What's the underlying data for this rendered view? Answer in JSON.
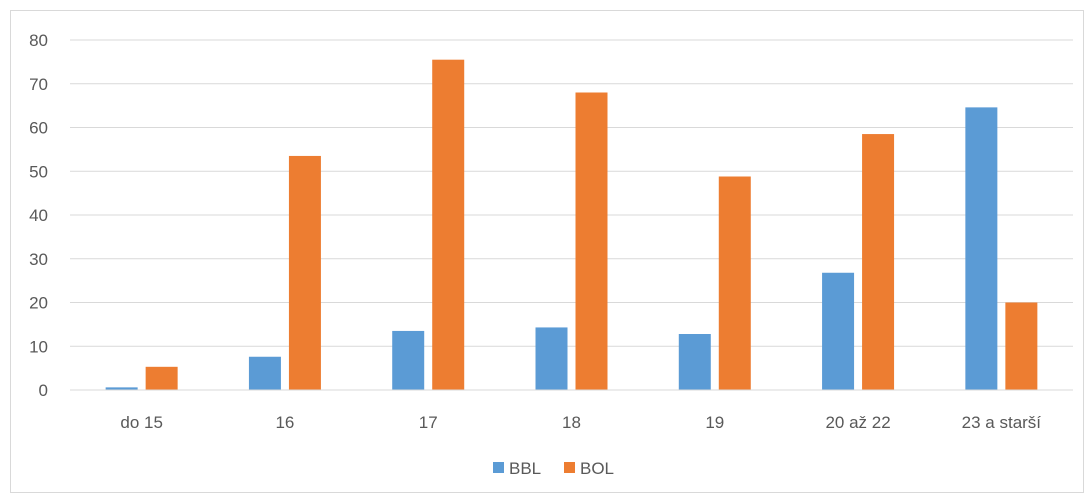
{
  "chart_data": {
    "type": "bar",
    "title": "",
    "xlabel": "",
    "ylabel": "",
    "categories": [
      "do 15",
      "16",
      "17",
      "18",
      "19",
      "20 až 22",
      "23 a starší"
    ],
    "series": [
      {
        "name": "BBL",
        "color": "#5b9bd5",
        "values": [
          0.6,
          7.6,
          13.5,
          14.3,
          12.8,
          26.8,
          64.6
        ]
      },
      {
        "name": "BOL",
        "color": "#ed7d31",
        "values": [
          5.3,
          53.5,
          75.5,
          68.0,
          48.8,
          58.5,
          20.0
        ]
      }
    ],
    "ylim": [
      0,
      80
    ],
    "yticks": [
      0,
      10,
      20,
      30,
      40,
      50,
      60,
      70,
      80
    ],
    "grid": true,
    "legend_position": "bottom"
  }
}
